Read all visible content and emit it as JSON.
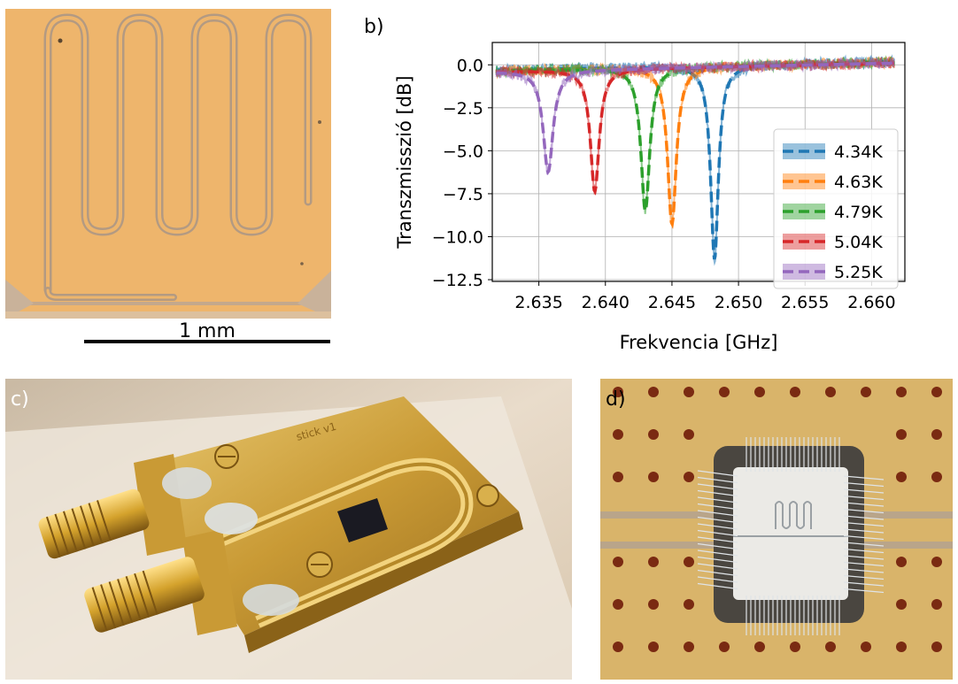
{
  "panels": {
    "a": {
      "label": "a)",
      "scale_bar": "1 mm"
    },
    "b": {
      "label": "b)"
    },
    "c": {
      "label": "c)",
      "engraving": "stick v1"
    },
    "d": {
      "label": "d)"
    }
  },
  "chart_data": {
    "type": "line",
    "title": "",
    "xlabel": "Frekvencia [GHz]",
    "ylabel": "Transzmisszió [dB]",
    "xlim": [
      2.6315,
      2.6625
    ],
    "ylim": [
      -12.6,
      1.3
    ],
    "xticks": [
      2.635,
      2.64,
      2.645,
      2.65,
      2.655,
      2.66
    ],
    "xtick_labels": [
      "2.635",
      "2.640",
      "2.645",
      "2.650",
      "2.655",
      "2.660"
    ],
    "yticks": [
      0.0,
      -2.5,
      -5.0,
      -7.5,
      -10.0,
      -12.5
    ],
    "ytick_labels": [
      "0.0",
      "−2.5",
      "−5.0",
      "−7.5",
      "−10.0",
      "−12.5"
    ],
    "grid": true,
    "legend_position": "lower-right",
    "series": [
      {
        "name": "4.34K",
        "color": "#1f77b4",
        "f0": 2.6482,
        "depth": -11.6,
        "hw": 0.00035,
        "baseline": -0.3
      },
      {
        "name": "4.63K",
        "color": "#ff7f0e",
        "f0": 2.645,
        "depth": -9.5,
        "hw": 0.0004,
        "baseline": -0.35
      },
      {
        "name": "4.79K",
        "color": "#2ca02c",
        "f0": 2.643,
        "depth": -8.7,
        "hw": 0.0004,
        "baseline": -0.35
      },
      {
        "name": "5.04K",
        "color": "#d62728",
        "f0": 2.6392,
        "depth": -7.5,
        "hw": 0.0004,
        "baseline": -0.4
      },
      {
        "name": "5.25K",
        "color": "#9467bd",
        "f0": 2.6357,
        "depth": -6.3,
        "hw": 0.00045,
        "baseline": -0.4
      }
    ]
  }
}
